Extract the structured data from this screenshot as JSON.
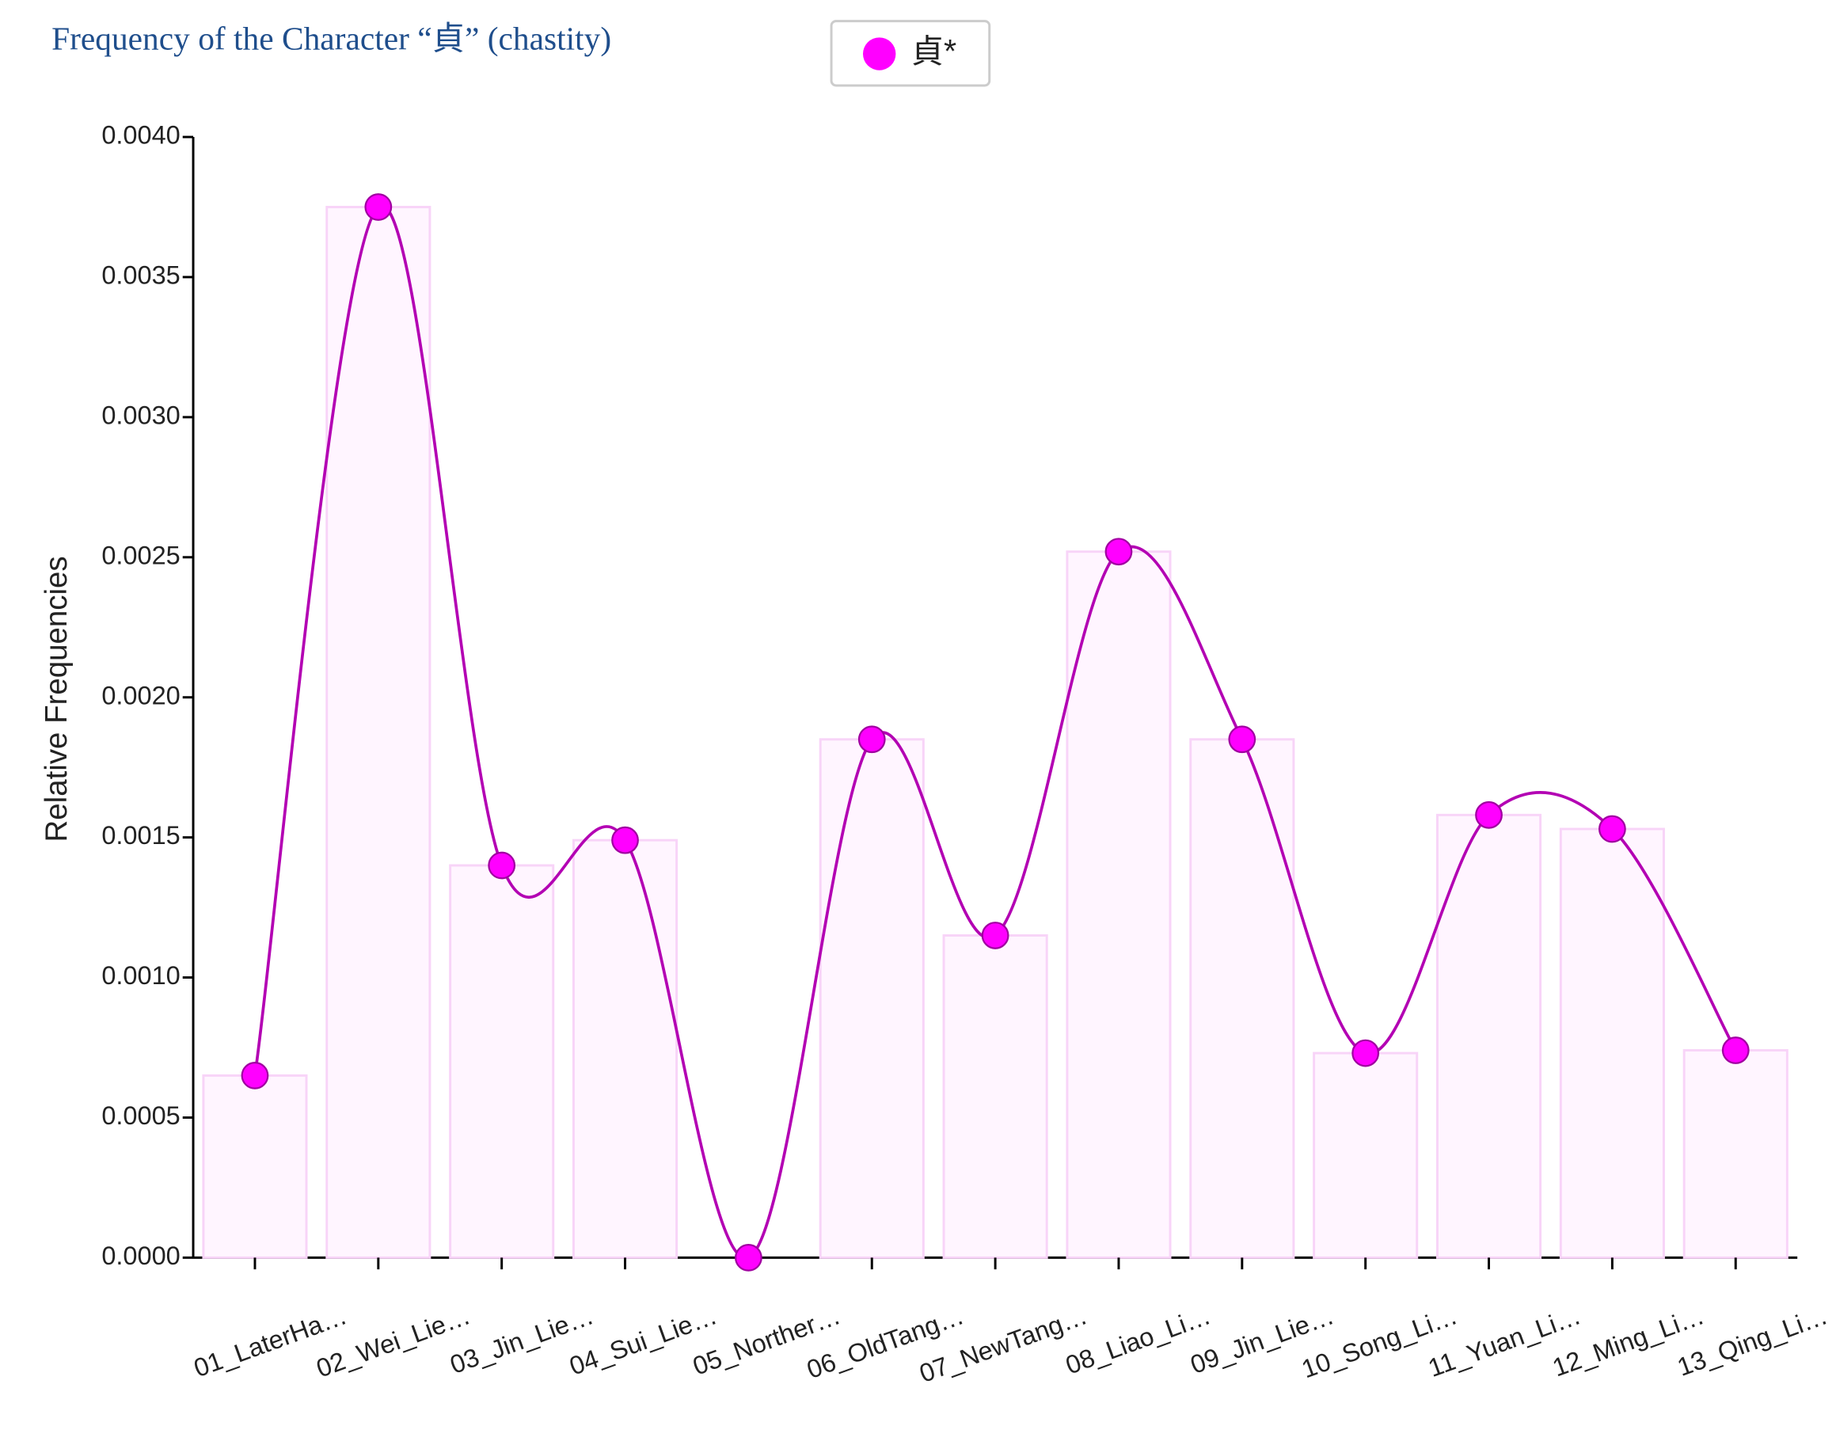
{
  "chart_data": {
    "type": "bar",
    "title": "Frequency of the Character “貞” (chastity)",
    "y_label": "Relative Frequencies",
    "categories": [
      "01_LaterHa…",
      "02_Wei_Lie…",
      "03_Jin_Lie…",
      "04_Sui_Lie…",
      "05_Norther…",
      "06_OldTang…",
      "07_NewTang…",
      "08_Liao_Li…",
      "09_Jin_Lie…",
      "10_Song_Li…",
      "11_Yuan_Li…",
      "12_Ming_Li…",
      "13_Qing_Li…"
    ],
    "series": [
      {
        "name": "貞*",
        "color": "#ff00ff",
        "values": [
          0.00065,
          0.00375,
          0.0014,
          0.00149,
          0,
          0.00185,
          0.00115,
          0.00252,
          0.00185,
          0.00073,
          0.00158,
          0.00153,
          0.00074
        ]
      }
    ],
    "ylim": [
      0,
      0.004
    ],
    "yticks": [
      {
        "value": 0,
        "label": "0.0000"
      },
      {
        "value": 0.0005,
        "label": "0.0005"
      },
      {
        "value": 0.001,
        "label": "0.0010"
      },
      {
        "value": 0.0015,
        "label": "0.0015"
      },
      {
        "value": 0.002,
        "label": "0.0020"
      },
      {
        "value": 0.0025,
        "label": "0.0025"
      },
      {
        "value": 0.003,
        "label": "0.0030"
      },
      {
        "value": 0.0035,
        "label": "0.0035"
      },
      {
        "value": 0.004,
        "label": "0.0040"
      }
    ],
    "grid": false
  }
}
